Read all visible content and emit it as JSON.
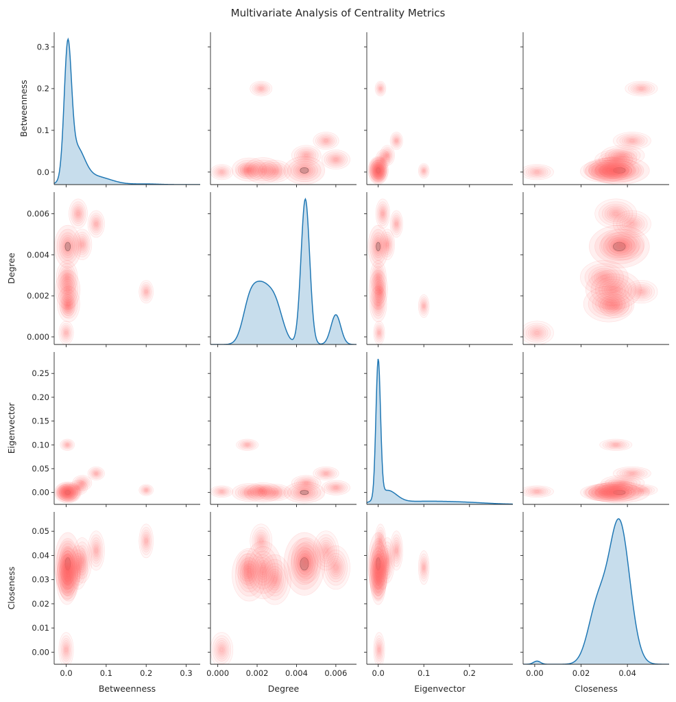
{
  "chart_data": {
    "type": "pairplot",
    "title": "Multivariate Analysis of Centrality Metrics",
    "variables": [
      "Betweenness",
      "Degree",
      "Eigenvector",
      "Closeness"
    ],
    "diagonal": "kde",
    "off_diagonal": "kde-filled",
    "colors": {
      "diagonal": "#1f77b4",
      "off_diagonal": "#ff6b6b"
    },
    "axes": {
      "Betweenness": {
        "lim": [
          -0.03,
          0.335
        ],
        "ticks": [
          0.0,
          0.1,
          0.2,
          0.3
        ],
        "tick_labels": [
          "0.0",
          "0.1",
          "0.2",
          "0.3"
        ]
      },
      "Degree": {
        "lim": [
          -0.00037,
          0.00705
        ],
        "ticks": [
          0.0,
          0.002,
          0.004,
          0.006
        ],
        "tick_labels": [
          "0.000",
          "0.002",
          "0.004",
          "0.006"
        ]
      },
      "Eigenvector": {
        "lim": [
          -0.025,
          0.295
        ],
        "ticks": [
          0.0,
          0.05,
          0.1,
          0.15,
          0.2,
          0.25
        ],
        "tick_labels": [
          "0.00",
          "0.05",
          "0.10",
          "0.15",
          "0.20",
          "0.25"
        ],
        "x_ticks": [
          0.0,
          0.1,
          0.2
        ],
        "x_tick_labels": [
          "0.0",
          "0.1",
          "0.2"
        ]
      },
      "Closeness": {
        "lim": [
          -0.005,
          0.058
        ],
        "ticks": [
          0.0,
          0.01,
          0.02,
          0.03,
          0.04,
          0.05
        ],
        "tick_labels": [
          "0.00",
          "0.01",
          "0.02",
          "0.03",
          "0.04",
          "0.05"
        ],
        "x_ticks": [
          0.0,
          0.02,
          0.04
        ],
        "x_tick_labels": [
          "0.00",
          "0.02",
          "0.04"
        ]
      }
    },
    "diagonal_kde": {
      "Betweenness": {
        "ymax": 0.32,
        "components": [
          [
            0.75,
            0.004,
            0.009
          ],
          [
            0.2,
            0.025,
            0.02
          ],
          [
            0.05,
            0.07,
            0.04
          ],
          [
            0.004,
            0.2,
            0.03
          ]
        ]
      },
      "Degree": {
        "ymax": 0.0675,
        "components": [
          [
            0.55,
            0.0016,
            0.00035
          ],
          [
            0.7,
            0.0022,
            0.0004
          ],
          [
            0.6,
            0.0029,
            0.0004
          ],
          [
            2.2,
            0.00445,
            0.00022
          ],
          [
            0.45,
            0.006,
            0.00025
          ]
        ]
      },
      "Eigenvector": {
        "ymax": 0.28,
        "components": [
          [
            0.9,
            0.0,
            0.005
          ],
          [
            0.08,
            0.02,
            0.02
          ],
          [
            0.02,
            0.1,
            0.08
          ],
          [
            0.005,
            0.2,
            0.05
          ]
        ]
      },
      "Closeness": {
        "ymax": 0.055,
        "components": [
          [
            0.02,
            0.001,
            0.0015
          ],
          [
            0.35,
            0.027,
            0.004
          ],
          [
            0.9,
            0.0365,
            0.0045
          ]
        ]
      }
    },
    "clusters": [
      {
        "b": 0.004,
        "d": 0.0044,
        "e": 0.0,
        "c": 0.0365,
        "w": 1.6
      },
      {
        "b": 0.006,
        "d": 0.0016,
        "e": 0.0,
        "c": 0.032,
        "w": 0.6
      },
      {
        "b": 0.004,
        "d": 0.0023,
        "e": 0.0,
        "c": 0.034,
        "w": 0.8
      },
      {
        "b": 0.002,
        "d": 0.0029,
        "e": 0.0,
        "c": 0.03,
        "w": 0.5
      },
      {
        "b": 0.04,
        "d": 0.0045,
        "e": 0.02,
        "c": 0.038,
        "w": 0.35
      },
      {
        "b": 0.075,
        "d": 0.0055,
        "e": 0.04,
        "c": 0.042,
        "w": 0.18
      },
      {
        "b": 0.03,
        "d": 0.006,
        "e": 0.01,
        "c": 0.035,
        "w": 0.3
      },
      {
        "b": 0.2,
        "d": 0.0022,
        "e": 0.005,
        "c": 0.046,
        "w": 0.04
      },
      {
        "b": 0.003,
        "d": 0.0015,
        "e": 0.1,
        "c": 0.035,
        "w": 0.04
      },
      {
        "b": 0.0,
        "d": 0.0002,
        "e": 0.002,
        "c": 0.001,
        "w": 0.06
      }
    ]
  }
}
